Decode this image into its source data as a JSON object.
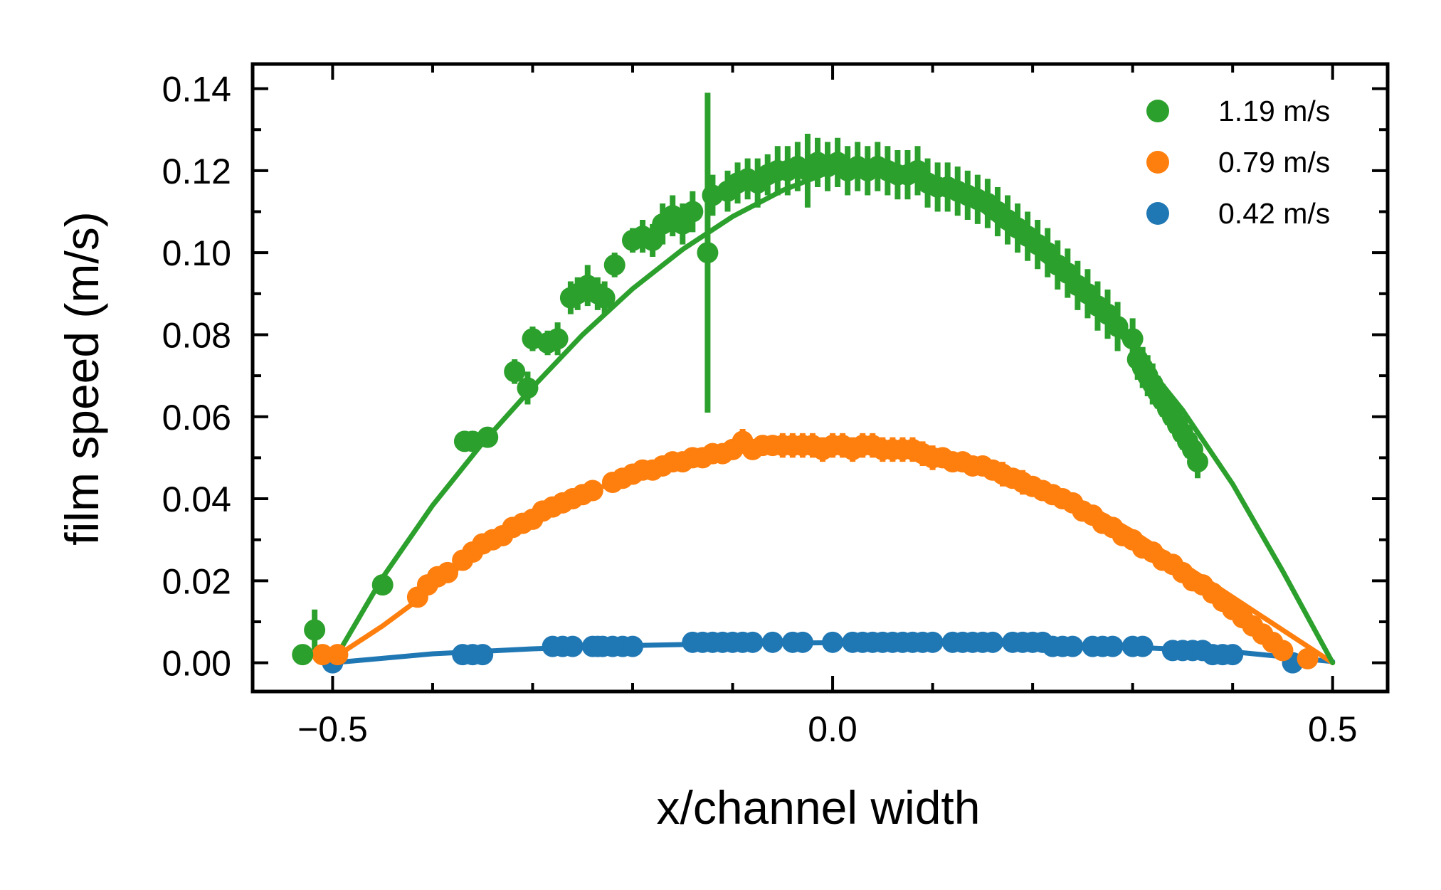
{
  "chart_data": {
    "type": "scatter",
    "title": "",
    "xlabel": "x/channel width",
    "ylabel": "film speed (m/s)",
    "xlim": [
      -0.58,
      0.555
    ],
    "ylim": [
      -0.007,
      0.146
    ],
    "x_ticks": [
      -0.5,
      0.0,
      0.5
    ],
    "x_tick_labels": [
      "−0.5",
      "0.0",
      "0.5"
    ],
    "y_ticks": [
      0.0,
      0.02,
      0.04,
      0.06,
      0.08,
      0.1,
      0.12,
      0.14
    ],
    "y_tick_labels": [
      "0.00",
      "0.02",
      "0.04",
      "0.06",
      "0.08",
      "0.10",
      "0.12",
      "0.14"
    ],
    "grid": false,
    "legend_position": "top-right",
    "series": [
      {
        "name": "1.19 m/s",
        "color": "#2ca02c",
        "x": [
          -0.53,
          -0.518,
          -0.45,
          -0.368,
          -0.36,
          -0.345,
          -0.318,
          -0.305,
          -0.3,
          -0.285,
          -0.275,
          -0.262,
          -0.255,
          -0.245,
          -0.235,
          -0.228,
          -0.218,
          -0.2,
          -0.19,
          -0.18,
          -0.17,
          -0.16,
          -0.15,
          -0.14,
          -0.125,
          -0.12,
          -0.105,
          -0.095,
          -0.085,
          -0.075,
          -0.065,
          -0.055,
          -0.045,
          -0.035,
          -0.025,
          -0.015,
          -0.005,
          0.005,
          0.015,
          0.025,
          0.035,
          0.045,
          0.055,
          0.065,
          0.075,
          0.085,
          0.095,
          0.105,
          0.115,
          0.125,
          0.135,
          0.145,
          0.155,
          0.165,
          0.175,
          0.185,
          0.195,
          0.205,
          0.215,
          0.225,
          0.235,
          0.245,
          0.255,
          0.265,
          0.275,
          0.285,
          0.3,
          0.305,
          0.31,
          0.315,
          0.32,
          0.325,
          0.33,
          0.335,
          0.34,
          0.345,
          0.35,
          0.355,
          0.36,
          0.365
        ],
        "y": [
          0.002,
          0.008,
          0.019,
          0.054,
          0.054,
          0.055,
          0.071,
          0.067,
          0.079,
          0.078,
          0.079,
          0.089,
          0.09,
          0.092,
          0.09,
          0.089,
          0.097,
          0.103,
          0.104,
          0.103,
          0.107,
          0.109,
          0.107,
          0.11,
          0.1,
          0.114,
          0.115,
          0.117,
          0.118,
          0.117,
          0.119,
          0.12,
          0.12,
          0.121,
          0.12,
          0.122,
          0.121,
          0.122,
          0.12,
          0.121,
          0.12,
          0.121,
          0.12,
          0.119,
          0.119,
          0.12,
          0.117,
          0.116,
          0.116,
          0.115,
          0.114,
          0.113,
          0.112,
          0.11,
          0.108,
          0.106,
          0.104,
          0.102,
          0.1,
          0.097,
          0.095,
          0.092,
          0.09,
          0.087,
          0.085,
          0.082,
          0.079,
          0.074,
          0.072,
          0.07,
          0.068,
          0.066,
          0.064,
          0.062,
          0.06,
          0.058,
          0.056,
          0.054,
          0.052,
          0.049
        ],
        "yerr": [
          0.001,
          0.005,
          0.001,
          0.002,
          0.002,
          0.002,
          0.003,
          0.004,
          0.003,
          0.003,
          0.004,
          0.004,
          0.004,
          0.005,
          0.004,
          0.004,
          0.003,
          0.003,
          0.004,
          0.004,
          0.005,
          0.005,
          0.005,
          0.005,
          0.039,
          0.005,
          0.005,
          0.005,
          0.005,
          0.006,
          0.005,
          0.006,
          0.006,
          0.006,
          0.009,
          0.006,
          0.006,
          0.006,
          0.006,
          0.006,
          0.006,
          0.006,
          0.006,
          0.006,
          0.006,
          0.006,
          0.006,
          0.006,
          0.006,
          0.006,
          0.006,
          0.006,
          0.006,
          0.006,
          0.006,
          0.006,
          0.006,
          0.006,
          0.006,
          0.006,
          0.006,
          0.006,
          0.006,
          0.006,
          0.006,
          0.006,
          0.005,
          0.005,
          0.005,
          0.005,
          0.005,
          0.004,
          0.004,
          0.004,
          0.004,
          0.004,
          0.004,
          0.004,
          0.004,
          0.004
        ],
        "fit": {
          "x": [
            -0.5,
            -0.45,
            -0.4,
            -0.35,
            -0.3,
            -0.25,
            -0.2,
            -0.15,
            -0.1,
            -0.05,
            0.0,
            0.05,
            0.1,
            0.15,
            0.2,
            0.25,
            0.3,
            0.35,
            0.4,
            0.45,
            0.5
          ],
          "y": [
            0.0,
            0.0208,
            0.0384,
            0.0536,
            0.0672,
            0.08,
            0.0912,
            0.1008,
            0.1088,
            0.1152,
            0.12,
            0.1216,
            0.1176,
            0.1104,
            0.1008,
            0.0896,
            0.0768,
            0.0616,
            0.0436,
            0.0224,
            0.0
          ]
        }
      },
      {
        "name": "0.79 m/s",
        "color": "#ff7f0e",
        "x": [
          -0.51,
          -0.495,
          -0.415,
          -0.405,
          -0.395,
          -0.385,
          -0.37,
          -0.36,
          -0.35,
          -0.34,
          -0.33,
          -0.32,
          -0.31,
          -0.3,
          -0.29,
          -0.28,
          -0.27,
          -0.26,
          -0.25,
          -0.24,
          -0.22,
          -0.21,
          -0.2,
          -0.19,
          -0.18,
          -0.17,
          -0.16,
          -0.15,
          -0.14,
          -0.13,
          -0.12,
          -0.11,
          -0.1,
          -0.09,
          -0.08,
          -0.07,
          -0.06,
          -0.05,
          -0.04,
          -0.03,
          -0.02,
          -0.01,
          0.0,
          0.01,
          0.02,
          0.03,
          0.04,
          0.05,
          0.06,
          0.07,
          0.08,
          0.09,
          0.1,
          0.11,
          0.12,
          0.13,
          0.14,
          0.15,
          0.16,
          0.17,
          0.18,
          0.19,
          0.2,
          0.21,
          0.22,
          0.23,
          0.24,
          0.25,
          0.26,
          0.27,
          0.28,
          0.29,
          0.3,
          0.31,
          0.32,
          0.33,
          0.34,
          0.35,
          0.36,
          0.37,
          0.38,
          0.39,
          0.4,
          0.41,
          0.42,
          0.43,
          0.44,
          0.45,
          0.475
        ],
        "y": [
          0.002,
          0.002,
          0.016,
          0.019,
          0.021,
          0.022,
          0.025,
          0.027,
          0.029,
          0.03,
          0.031,
          0.033,
          0.034,
          0.035,
          0.037,
          0.038,
          0.039,
          0.04,
          0.041,
          0.042,
          0.044,
          0.045,
          0.046,
          0.047,
          0.047,
          0.048,
          0.049,
          0.049,
          0.05,
          0.05,
          0.051,
          0.051,
          0.052,
          0.054,
          0.052,
          0.053,
          0.053,
          0.053,
          0.053,
          0.053,
          0.053,
          0.052,
          0.053,
          0.053,
          0.052,
          0.053,
          0.053,
          0.052,
          0.052,
          0.052,
          0.052,
          0.051,
          0.05,
          0.05,
          0.049,
          0.049,
          0.048,
          0.048,
          0.047,
          0.046,
          0.045,
          0.044,
          0.043,
          0.042,
          0.041,
          0.04,
          0.039,
          0.037,
          0.036,
          0.034,
          0.033,
          0.031,
          0.03,
          0.028,
          0.027,
          0.025,
          0.024,
          0.022,
          0.02,
          0.019,
          0.017,
          0.015,
          0.013,
          0.011,
          0.009,
          0.007,
          0.005,
          0.003,
          0.001
        ],
        "yerr": [
          0.0,
          0.0,
          0.001,
          0.001,
          0.001,
          0.001,
          0.001,
          0.001,
          0.001,
          0.001,
          0.001,
          0.001,
          0.002,
          0.001,
          0.002,
          0.001,
          0.001,
          0.001,
          0.002,
          0.002,
          0.002,
          0.002,
          0.002,
          0.002,
          0.002,
          0.002,
          0.002,
          0.002,
          0.002,
          0.002,
          0.002,
          0.002,
          0.002,
          0.003,
          0.002,
          0.002,
          0.002,
          0.003,
          0.003,
          0.003,
          0.003,
          0.003,
          0.003,
          0.003,
          0.003,
          0.003,
          0.003,
          0.003,
          0.003,
          0.003,
          0.003,
          0.003,
          0.003,
          0.002,
          0.002,
          0.002,
          0.002,
          0.002,
          0.002,
          0.003,
          0.002,
          0.003,
          0.002,
          0.002,
          0.002,
          0.002,
          0.002,
          0.002,
          0.002,
          0.002,
          0.002,
          0.002,
          0.002,
          0.002,
          0.002,
          0.002,
          0.002,
          0.002,
          0.002,
          0.002,
          0.002,
          0.002,
          0.002,
          0.002,
          0.002,
          0.002,
          0.002,
          0.002,
          0.0
        ],
        "fit": {
          "x": [
            -0.5,
            -0.45,
            -0.4,
            -0.35,
            -0.3,
            -0.25,
            -0.2,
            -0.15,
            -0.1,
            -0.05,
            0.0,
            0.05,
            0.1,
            0.15,
            0.2,
            0.25,
            0.3,
            0.35,
            0.4,
            0.45,
            0.5
          ],
          "y": [
            0.001,
            0.009,
            0.018,
            0.028,
            0.035,
            0.041,
            0.046,
            0.049,
            0.052,
            0.053,
            0.0535,
            0.053,
            0.051,
            0.048,
            0.044,
            0.039,
            0.032,
            0.024,
            0.016,
            0.008,
            0.0
          ]
        }
      },
      {
        "name": "0.42 m/s",
        "color": "#1f77b4",
        "x": [
          -0.5,
          -0.37,
          -0.36,
          -0.35,
          -0.28,
          -0.27,
          -0.26,
          -0.24,
          -0.235,
          -0.23,
          -0.22,
          -0.21,
          -0.2,
          -0.14,
          -0.13,
          -0.12,
          -0.11,
          -0.1,
          -0.09,
          -0.08,
          -0.06,
          -0.04,
          -0.03,
          0.0,
          0.02,
          0.03,
          0.04,
          0.05,
          0.06,
          0.07,
          0.08,
          0.09,
          0.1,
          0.12,
          0.13,
          0.14,
          0.15,
          0.16,
          0.18,
          0.19,
          0.2,
          0.21,
          0.22,
          0.23,
          0.24,
          0.26,
          0.27,
          0.28,
          0.3,
          0.31,
          0.34,
          0.35,
          0.36,
          0.37,
          0.38,
          0.39,
          0.4,
          0.46
        ],
        "y": [
          0.0,
          0.002,
          0.002,
          0.002,
          0.004,
          0.004,
          0.004,
          0.004,
          0.004,
          0.004,
          0.004,
          0.004,
          0.004,
          0.005,
          0.005,
          0.005,
          0.005,
          0.005,
          0.005,
          0.005,
          0.005,
          0.005,
          0.005,
          0.005,
          0.005,
          0.005,
          0.005,
          0.005,
          0.005,
          0.005,
          0.005,
          0.005,
          0.005,
          0.005,
          0.005,
          0.005,
          0.005,
          0.005,
          0.005,
          0.005,
          0.005,
          0.005,
          0.004,
          0.004,
          0.004,
          0.004,
          0.004,
          0.004,
          0.004,
          0.004,
          0.003,
          0.003,
          0.003,
          0.003,
          0.002,
          0.002,
          0.002,
          0.0
        ],
        "yerr": [],
        "fit": {
          "x": [
            -0.5,
            -0.4,
            -0.3,
            -0.2,
            -0.1,
            0.0,
            0.1,
            0.2,
            0.3,
            0.4,
            0.5
          ],
          "y": [
            0.0,
            0.0022,
            0.0034,
            0.0042,
            0.0047,
            0.0049,
            0.0048,
            0.0045,
            0.0038,
            0.0027,
            0.0003
          ]
        }
      }
    ]
  }
}
